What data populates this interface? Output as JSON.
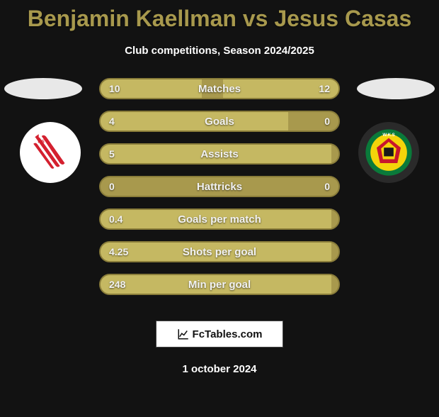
{
  "title": "Benjamin Kaellman vs Jesus Casas",
  "subtitle": "Club competitions, Season 2024/2025",
  "colors": {
    "background": "#121212",
    "title": "#a8994d",
    "bar_track": "#a8994d",
    "bar_track_border": "#8a7d3a",
    "bar_fill": "#c5b862",
    "text": "#f2f2f2",
    "oval": "#e8e8e8",
    "badge_left_bg": "#ffffff",
    "badge_right_bg": "#2a2a2a"
  },
  "rows": [
    {
      "label": "Matches",
      "left": "10",
      "right": "12",
      "left_pct": 42,
      "right_pct": 48
    },
    {
      "label": "Goals",
      "left": "4",
      "right": "0",
      "left_pct": 78,
      "right_pct": 0
    },
    {
      "label": "Assists",
      "left": "5",
      "right": "",
      "left_pct": 96,
      "right_pct": 0
    },
    {
      "label": "Hattricks",
      "left": "0",
      "right": "0",
      "left_pct": 0,
      "right_pct": 0
    },
    {
      "label": "Goals per match",
      "left": "0.4",
      "right": "",
      "left_pct": 96,
      "right_pct": 0
    },
    {
      "label": "Shots per goal",
      "left": "4.25",
      "right": "",
      "left_pct": 96,
      "right_pct": 0
    },
    {
      "label": "Min per goal",
      "left": "248",
      "right": "",
      "left_pct": 96,
      "right_pct": 0
    }
  ],
  "footer_brand": "FcTables.com",
  "footer_date": "1 october 2024",
  "badge_left": {
    "name": "cracovia-badge",
    "stripe_color": "#d4202f",
    "bg": "#ffffff"
  },
  "badge_right": {
    "name": "slask-badge",
    "outer": "#0a7a3a",
    "inner_yellow": "#f4d40a",
    "inner_red": "#c8152d",
    "dark": "#1a1a1a"
  }
}
